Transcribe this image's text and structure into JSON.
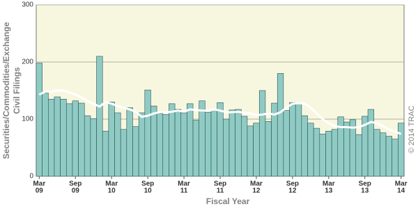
{
  "chart_data": {
    "type": "bar",
    "x_label": "Fiscal Year",
    "y_label": [
      "Securities/Commodities/Exchange",
      "Civil Filings"
    ],
    "annotation": "© 2014 TRAC",
    "categories": [
      [
        "Mar",
        "09"
      ],
      null,
      null,
      null,
      null,
      null,
      [
        "Sep",
        "09"
      ],
      null,
      null,
      null,
      null,
      null,
      [
        "Mar",
        "10"
      ],
      null,
      null,
      null,
      null,
      null,
      [
        "Sep",
        "10"
      ],
      null,
      null,
      null,
      null,
      null,
      [
        "Mar",
        "11"
      ],
      null,
      null,
      null,
      null,
      null,
      [
        "Sep",
        "11"
      ],
      null,
      null,
      null,
      null,
      null,
      [
        "Mar",
        "12"
      ],
      null,
      null,
      null,
      null,
      null,
      [
        "Sep",
        "12"
      ],
      null,
      null,
      null,
      null,
      null,
      [
        "Mar",
        "13"
      ],
      null,
      null,
      null,
      null,
      null,
      [
        "Sep",
        "13"
      ],
      null,
      null,
      null,
      null,
      null,
      [
        "Mar",
        "14"
      ]
    ],
    "series": [
      {
        "name": "Civil Filings",
        "color": "#8fcbc4",
        "values": [
          198,
          146,
          135,
          139,
          135,
          127,
          132,
          128,
          106,
          101,
          210,
          79,
          130,
          111,
          82,
          120,
          87,
          111,
          151,
          123,
          110,
          108,
          127,
          117,
          111,
          127,
          98,
          132,
          112,
          116,
          129,
          100,
          116,
          117,
          105,
          88,
          93,
          150,
          96,
          128,
          180,
          115,
          129,
          128,
          106,
          93,
          84,
          74,
          79,
          82,
          104,
          95,
          99,
          73,
          105,
          117,
          82,
          76,
          70,
          65,
          93
        ]
      },
      {
        "name": "Trend",
        "color": "#ffffff",
        "values": [
          143,
          148,
          148,
          150,
          150,
          147,
          143,
          138,
          132,
          127,
          122,
          130,
          127,
          123,
          120,
          117,
          113,
          104,
          106,
          110,
          112,
          112,
          113,
          115,
          113,
          117,
          116,
          115,
          115,
          117,
          115,
          112,
          112,
          113,
          111,
          110,
          107,
          108,
          110,
          108,
          112,
          120,
          127,
          128,
          127,
          120,
          110,
          100,
          93,
          88,
          86,
          86,
          85,
          86,
          90,
          95,
          93,
          88,
          82,
          78,
          74
        ]
      }
    ],
    "ylim": [
      0,
      300
    ],
    "yticks": [
      0,
      100,
      200,
      300
    ],
    "grid": true,
    "background": "#f7f7e0"
  }
}
